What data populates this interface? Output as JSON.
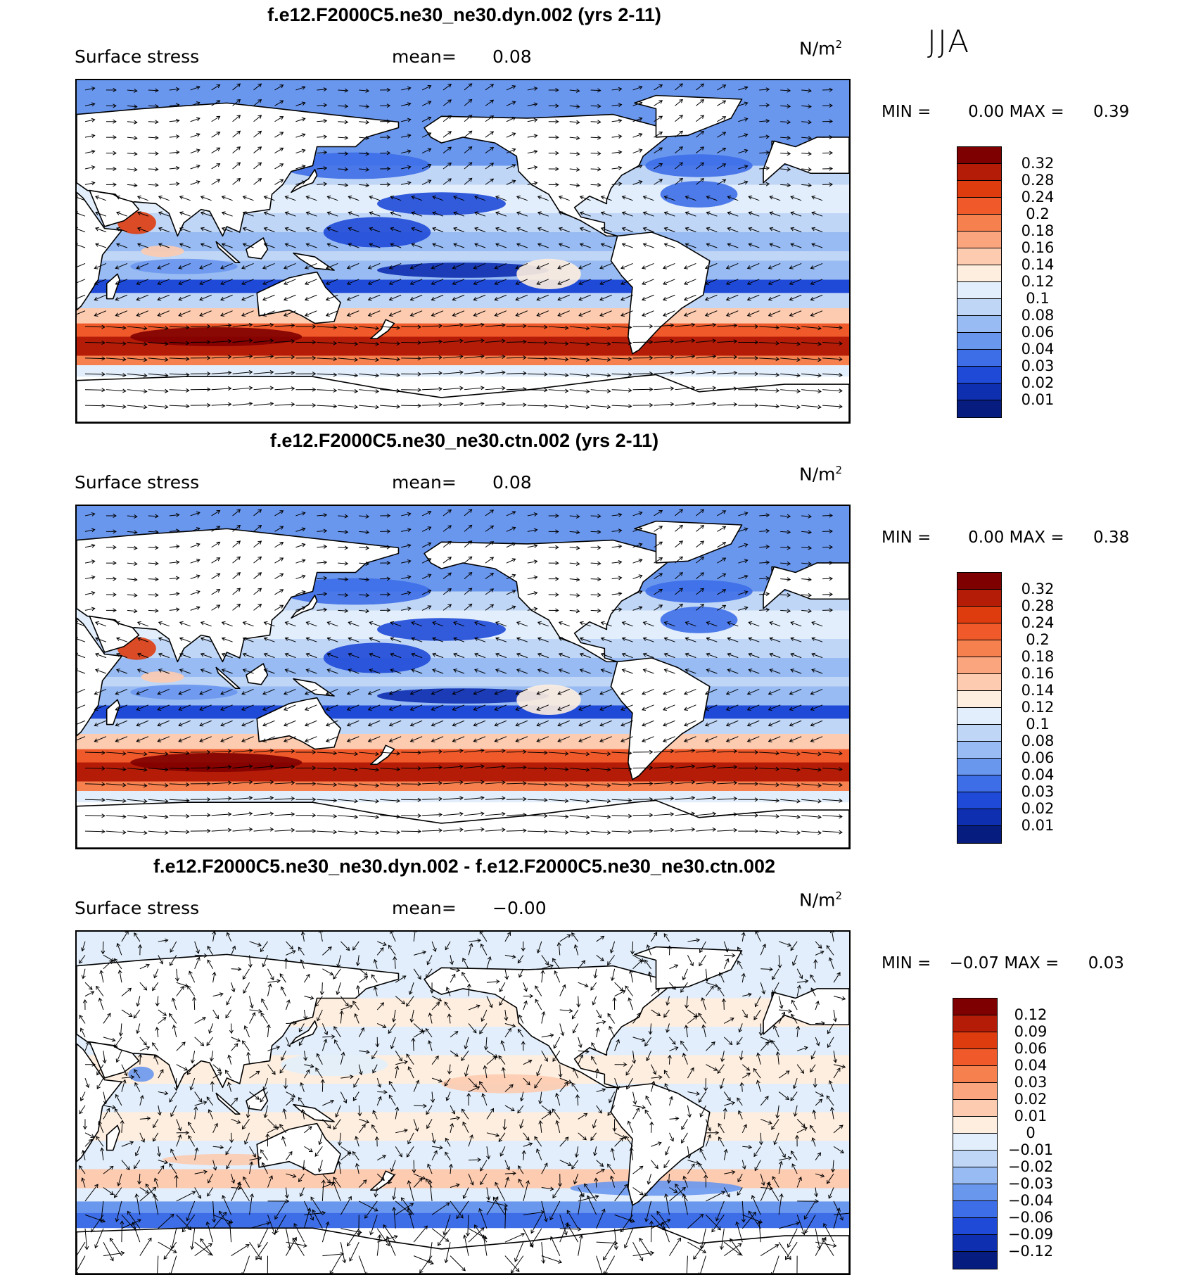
{
  "season": "JJA",
  "panels": [
    {
      "title": "f.e12.F2000C5.ne30_ne30.dyn.002 (yrs 2-11)",
      "variable": "Surface stress",
      "mean_label": "mean=",
      "mean_value": "0.08",
      "units_base": "N/m",
      "units_exp": "2",
      "min_label": "MIN =",
      "min_value": "0.00",
      "max_label": "MAX =",
      "max_value": "0.39",
      "type": "absolute",
      "levels": [
        "0.32",
        "0.28",
        "0.24",
        "0.2",
        "0.18",
        "0.16",
        "0.14",
        "0.12",
        "0.1",
        "0.08",
        "0.06",
        "0.04",
        "0.03",
        "0.02",
        "0.01"
      ],
      "colors": [
        "#7f0000",
        "#b51c08",
        "#de3c0e",
        "#f05a2a",
        "#f7804f",
        "#fba57f",
        "#fdcbb0",
        "#feeedf",
        "#e2eefb",
        "#c0d6f6",
        "#97bbf2",
        "#6a97ee",
        "#3d6ee8",
        "#1f4ad8",
        "#0e2fb0",
        "#061c7e"
      ]
    },
    {
      "title": "f.e12.F2000C5.ne30_ne30.ctn.002 (yrs 2-11)",
      "variable": "Surface stress",
      "mean_label": "mean=",
      "mean_value": "0.08",
      "units_base": "N/m",
      "units_exp": "2",
      "min_label": "MIN =",
      "min_value": "0.00",
      "max_label": "MAX =",
      "max_value": "0.38",
      "type": "absolute",
      "levels": [
        "0.32",
        "0.28",
        "0.24",
        "0.2",
        "0.18",
        "0.16",
        "0.14",
        "0.12",
        "0.1",
        "0.08",
        "0.06",
        "0.04",
        "0.03",
        "0.02",
        "0.01"
      ],
      "colors": [
        "#7f0000",
        "#b51c08",
        "#de3c0e",
        "#f05a2a",
        "#f7804f",
        "#fba57f",
        "#fdcbb0",
        "#feeedf",
        "#e2eefb",
        "#c0d6f6",
        "#97bbf2",
        "#6a97ee",
        "#3d6ee8",
        "#1f4ad8",
        "#0e2fb0",
        "#061c7e"
      ]
    },
    {
      "title": "f.e12.F2000C5.ne30_ne30.dyn.002 - f.e12.F2000C5.ne30_ne30.ctn.002",
      "variable": "Surface stress",
      "mean_label": "mean=",
      "mean_value": "−0.00",
      "units_base": "N/m",
      "units_exp": "2",
      "min_label": "MIN =",
      "min_value": "−0.07",
      "max_label": "MAX =",
      "max_value": "0.03",
      "type": "difference",
      "levels": [
        "0.12",
        "0.09",
        "0.06",
        "0.04",
        "0.03",
        "0.02",
        "0.01",
        "0",
        "−0.01",
        "−0.02",
        "−0.03",
        "−0.04",
        "−0.06",
        "−0.09",
        "−0.12"
      ],
      "colors": [
        "#7f0000",
        "#b51c08",
        "#de3c0e",
        "#f05a2a",
        "#f7804f",
        "#fba57f",
        "#fdcbb0",
        "#feeedf",
        "#e2eefb",
        "#c0d6f6",
        "#97bbf2",
        "#6a97ee",
        "#3d6ee8",
        "#1f4ad8",
        "#0e2fb0",
        "#061c7e"
      ]
    }
  ]
}
